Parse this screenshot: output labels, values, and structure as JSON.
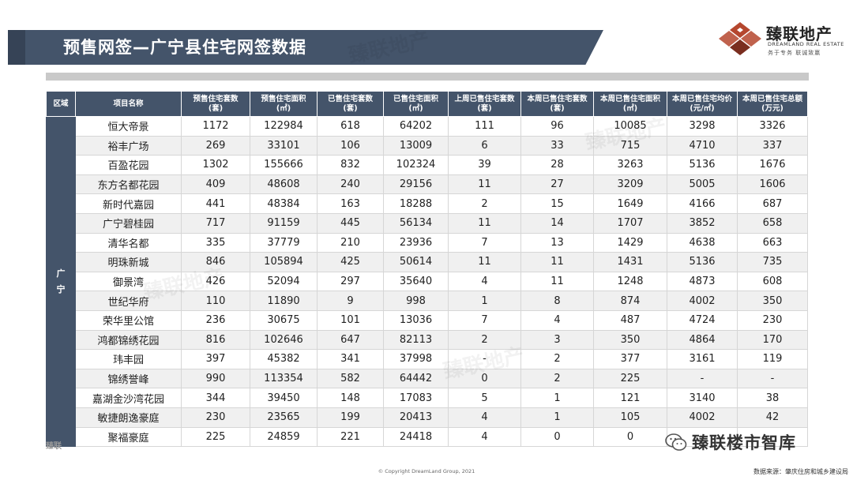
{
  "title": "预售网签—广宁县住宅网签数据",
  "logo": {
    "name": "臻联地产",
    "english": "DREAMLAND REAL ESTATE",
    "slogan": "务于专务 联诚致赢",
    "accent_color": "#b5472e"
  },
  "table": {
    "headers": [
      "区域",
      "项目名称",
      "预售住宅套数\n(套)",
      "预售住宅面积\n(㎡)",
      "已售住宅套数\n(套)",
      "已售住宅面积\n(㎡)",
      "上周已售住宅套数\n(套)",
      "本周已售住宅套数\n(套)",
      "本周已售住宅面积\n(㎡)",
      "本周已售住宅均价\n(元/㎡)",
      "本周已售住宅总额\n(万元)"
    ],
    "region": "广\n宁",
    "rows": [
      [
        "恒大帝景",
        "1172",
        "122984",
        "618",
        "64202",
        "111",
        "96",
        "10085",
        "3298",
        "3326"
      ],
      [
        "裕丰广场",
        "269",
        "33101",
        "106",
        "13009",
        "6",
        "33",
        "715",
        "4710",
        "337"
      ],
      [
        "百盈花园",
        "1302",
        "155666",
        "832",
        "102324",
        "39",
        "28",
        "3263",
        "5136",
        "1676"
      ],
      [
        "东方名都花园",
        "409",
        "48608",
        "240",
        "29156",
        "11",
        "27",
        "3209",
        "5005",
        "1606"
      ],
      [
        "新时代嘉园",
        "441",
        "48384",
        "163",
        "18288",
        "2",
        "15",
        "1649",
        "4166",
        "687"
      ],
      [
        "广宁碧桂园",
        "717",
        "91159",
        "445",
        "56134",
        "11",
        "14",
        "1707",
        "3852",
        "658"
      ],
      [
        "清华名都",
        "335",
        "37779",
        "210",
        "23936",
        "7",
        "13",
        "1429",
        "4638",
        "663"
      ],
      [
        "明珠新城",
        "846",
        "105894",
        "425",
        "50614",
        "11",
        "11",
        "1431",
        "5136",
        "735"
      ],
      [
        "御景湾",
        "426",
        "52094",
        "297",
        "35640",
        "4",
        "11",
        "1248",
        "4873",
        "608"
      ],
      [
        "世纪华府",
        "110",
        "11890",
        "9",
        "998",
        "1",
        "8",
        "874",
        "4002",
        "350"
      ],
      [
        "荣华里公馆",
        "236",
        "30675",
        "101",
        "13036",
        "7",
        "4",
        "487",
        "4724",
        "230"
      ],
      [
        "鸿都锦绣花园",
        "816",
        "102646",
        "647",
        "82113",
        "2",
        "3",
        "350",
        "4864",
        "170"
      ],
      [
        "玮丰园",
        "397",
        "45382",
        "341",
        "37998",
        "-",
        "2",
        "377",
        "3161",
        "119"
      ],
      [
        "锦绣誉峰",
        "990",
        "113354",
        "582",
        "64442",
        "0",
        "2",
        "225",
        "-",
        "-"
      ],
      [
        "嘉湖金沙湾花园",
        "344",
        "39450",
        "148",
        "17083",
        "5",
        "1",
        "121",
        "3140",
        "38"
      ],
      [
        "敏捷朗逸豪庭",
        "230",
        "23565",
        "199",
        "20413",
        "4",
        "1",
        "105",
        "4002",
        "42"
      ],
      [
        "聚福豪庭",
        "225",
        "24859",
        "221",
        "24418",
        "4",
        "0",
        "0",
        "",
        ""
      ]
    ]
  },
  "watermark_text": "臻联地产",
  "wechat": {
    "icon": "wechat-icon",
    "text": "臻联楼市智库"
  },
  "corner_mark": "臻联",
  "footer": {
    "copyright": "© Copyright  DreamLand Group, 2021",
    "source": "数据来源：肇庆住房和城乡建设局"
  }
}
